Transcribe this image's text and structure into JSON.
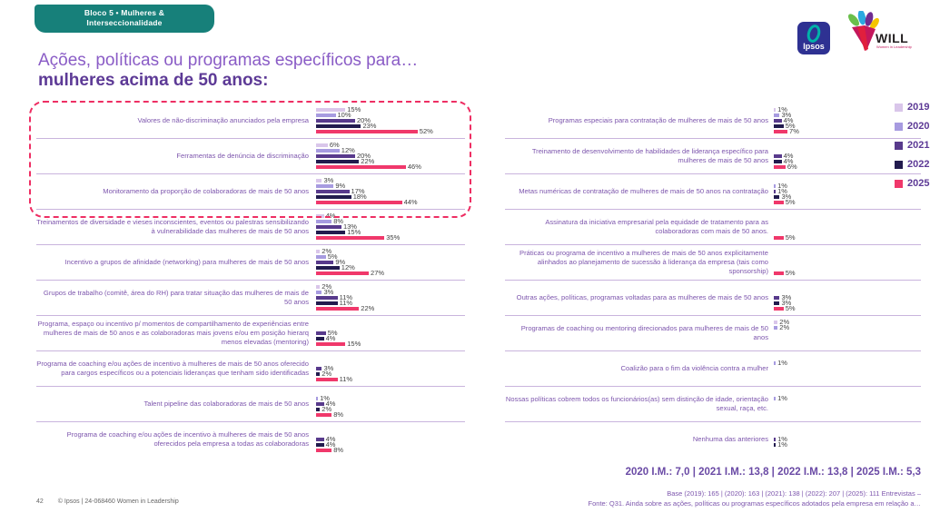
{
  "badge": {
    "line1": "Bloco 5 • Mulheres &",
    "line2": "Interseccionalidade"
  },
  "title": {
    "line1": "Ações, políticas ou programas específicos para…",
    "line2": "mulheres acima de 50 anos:"
  },
  "logos": {
    "ipsos": {
      "label": "Ipsos"
    },
    "will": {
      "label": "WILL",
      "tagline": "Women in Leadership"
    }
  },
  "colors": {
    "badge_teal": "#17807a",
    "highlight_border": "#ee2e63",
    "separator": "#c9b4dd",
    "label_text": "#7d56ad",
    "value_text": "#3f3f3f"
  },
  "chart_data": {
    "type": "bar",
    "orientation": "horizontal",
    "unit": "%",
    "years": [
      "2019",
      "2020",
      "2021",
      "2022",
      "2025"
    ],
    "year_colors": {
      "2019": "#d9c6ea",
      "2020": "#a79be0",
      "2021": "#583a8c",
      "2022": "#221b4e",
      "2025": "#f0386b"
    },
    "legend_position": "right",
    "columns": [
      {
        "name": "left",
        "items": [
          {
            "label": "Valores de não-discriminação anunciados pela empresa",
            "highlighted": true,
            "values": [
              {
                "year": "2019",
                "value": 15
              },
              {
                "year": "2020",
                "value": 10
              },
              {
                "year": "2021",
                "value": 20
              },
              {
                "year": "2022",
                "value": 23
              },
              {
                "year": "2025",
                "value": 52
              }
            ]
          },
          {
            "label": "Ferramentas de denúncia de discriminação",
            "highlighted": true,
            "values": [
              {
                "year": "2019",
                "value": 6
              },
              {
                "year": "2020",
                "value": 12
              },
              {
                "year": "2021",
                "value": 20
              },
              {
                "year": "2022",
                "value": 22
              },
              {
                "year": "2025",
                "value": 46
              }
            ]
          },
          {
            "label": "Monitoramento da proporção de colaboradoras de mais de 50 anos",
            "highlighted": true,
            "values": [
              {
                "year": "2019",
                "value": 3
              },
              {
                "year": "2020",
                "value": 9
              },
              {
                "year": "2021",
                "value": 17
              },
              {
                "year": "2022",
                "value": 18
              },
              {
                "year": "2025",
                "value": 44
              }
            ]
          },
          {
            "label": "Treinamentos de diversidade e vieses inconscientes, eventos ou palestras sensibilizando à vulnerabilidade das mulheres de mais de 50 anos",
            "values": [
              {
                "year": "2019",
                "value": 4
              },
              {
                "year": "2020",
                "value": 8
              },
              {
                "year": "2021",
                "value": 13
              },
              {
                "year": "2022",
                "value": 15
              },
              {
                "year": "2025",
                "value": 35
              }
            ]
          },
          {
            "label": "Incentivo a grupos de afinidade (networking) para mulheres de mais de 50 anos",
            "values": [
              {
                "year": "2019",
                "value": 2
              },
              {
                "year": "2020",
                "value": 5
              },
              {
                "year": "2021",
                "value": 9
              },
              {
                "year": "2022",
                "value": 12
              },
              {
                "year": "2025",
                "value": 27
              }
            ]
          },
          {
            "label": "Grupos de trabalho (comitê, área do RH) para tratar situação das mulheres de mais de 50 anos",
            "values": [
              {
                "year": "2019",
                "value": 2
              },
              {
                "year": "2020",
                "value": 3
              },
              {
                "year": "2021",
                "value": 11
              },
              {
                "year": "2022",
                "value": 11
              },
              {
                "year": "2025",
                "value": 22
              }
            ]
          },
          {
            "label": "Programa, espaço ou incentivo p/ momentos de compartilhamento de experiências entre mulheres de mais de 50 anos e as colaboradoras mais jovens e/ou em posição hierarq menos elevadas (mentoring)",
            "values": [
              {
                "year": "2021",
                "value": 5
              },
              {
                "year": "2022",
                "value": 4
              },
              {
                "year": "2025",
                "value": 15
              }
            ]
          },
          {
            "label": "Programa de coaching e/ou ações de incentivo à mulheres de mais de 50 anos oferecido para cargos específicos ou a potenciais lideranças que tenham sido identificadas",
            "values": [
              {
                "year": "2021",
                "value": 3
              },
              {
                "year": "2022",
                "value": 2
              },
              {
                "year": "2025",
                "value": 11
              }
            ]
          },
          {
            "label": "Talent pipeline das colaboradoras de mais de 50 anos",
            "values": [
              {
                "year": "2020",
                "value": 1
              },
              {
                "year": "2021",
                "value": 4
              },
              {
                "year": "2022",
                "value": 2
              },
              {
                "year": "2025",
                "value": 8
              }
            ]
          },
          {
            "label": "Programa de coaching e/ou ações de incentivo à mulheres de mais de 50 anos oferecidos pela empresa a todas as colaboradoras",
            "values": [
              {
                "year": "2021",
                "value": 4
              },
              {
                "year": "2022",
                "value": 4
              },
              {
                "year": "2025",
                "value": 8
              }
            ]
          }
        ]
      },
      {
        "name": "right",
        "items": [
          {
            "label": "Programas especiais para contratação de mulheres de mais de 50 anos",
            "values": [
              {
                "year": "2019",
                "value": 1
              },
              {
                "year": "2020",
                "value": 3
              },
              {
                "year": "2021",
                "value": 4
              },
              {
                "year": "2022",
                "value": 5
              },
              {
                "year": "2025",
                "value": 7
              }
            ]
          },
          {
            "label": "Treinamento de desenvolvimento de habilidades de liderança específico para mulheres de mais de 50 anos",
            "values": [
              {
                "year": "2021",
                "value": 4
              },
              {
                "year": "2022",
                "value": 4
              },
              {
                "year": "2025",
                "value": 6
              }
            ]
          },
          {
            "label": "Metas numéricas de contratação de mulheres de mais de 50 anos na contratação",
            "values": [
              {
                "year": "2020",
                "value": 1
              },
              {
                "year": "2021",
                "value": 1
              },
              {
                "year": "2022",
                "value": 3
              },
              {
                "year": "2025",
                "value": 5
              }
            ]
          },
          {
            "label": "Assinatura da iniciativa empresarial pela equidade de tratamento para as colaboradoras com mais de 50 anos.",
            "values": [
              {
                "year": "2025",
                "value": 5
              }
            ]
          },
          {
            "label": "Práticas ou programa de incentivo a mulheres de mais de 50 anos explicitamente alinhados ao planejamento de sucessão à liderança da empresa (tais como sponsorship)",
            "values": [
              {
                "year": "2025",
                "value": 5
              }
            ]
          },
          {
            "label": "Outras ações, políticas, programas voltadas para as mulheres de mais de 50 anos",
            "values": [
              {
                "year": "2021",
                "value": 3
              },
              {
                "year": "2022",
                "value": 3
              },
              {
                "year": "2025",
                "value": 5
              }
            ]
          },
          {
            "label": "Programas de coaching ou mentoring direcionados para mulheres de mais de 50 anos",
            "values": [
              {
                "year": "2019",
                "value": 2
              },
              {
                "year": "2020",
                "value": 2
              }
            ]
          },
          {
            "label": "Coalizão para o fim da violência contra a mulher",
            "values": [
              {
                "year": "2020",
                "value": 1
              }
            ]
          },
          {
            "label": "Nossas políticas cobrem todos os funcionários(as) sem distinção de idade, orientação sexual, raça, etc.",
            "values": [
              {
                "year": "2020",
                "value": 1
              }
            ]
          },
          {
            "label": "Nenhuma das anteriores",
            "values": [
              {
                "year": "2021",
                "value": 1
              },
              {
                "year": "2022",
                "value": 1
              }
            ]
          }
        ]
      }
    ]
  },
  "footnotes": {
    "im_line": "2020 I.M.: 7,0 | 2021 I.M.: 13,8 | 2022 I.M.: 13,8 | 2025 I.M.: 5,3",
    "base_line": "Base (2019): 165 | (2020): 163 | (2021): 138 | (2022): 207 | (2025): 111 Entrevistas –",
    "fonte_line": "Fonte: Q31. Ainda sobre as ações, políticas ou programas específicos adotados pela empresa em relação a…"
  },
  "footer": {
    "page_number": "42",
    "copyright": "© Ipsos | 24-068460 Women in Leadership"
  }
}
